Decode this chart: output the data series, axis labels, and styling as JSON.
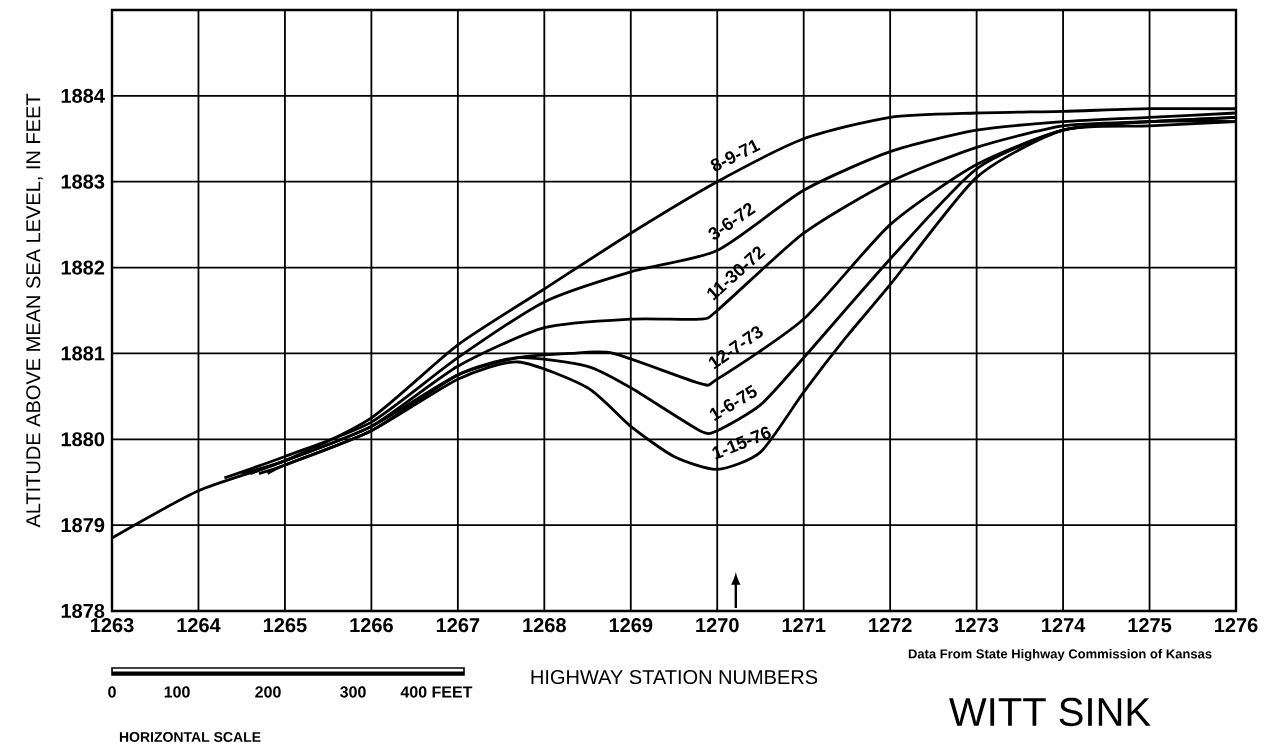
{
  "chart_data": {
    "type": "line",
    "title": "WITT SINK",
    "xlabel": "HIGHWAY STATION NUMBERS",
    "ylabel": "ALTITUDE ABOVE MEAN SEA LEVEL, IN FEET",
    "xlim": [
      1263,
      1276
    ],
    "xticks": [
      1263,
      1264,
      1265,
      1266,
      1267,
      1268,
      1269,
      1270,
      1271,
      1272,
      1273,
      1274,
      1275,
      1276
    ],
    "ylim": [
      1878,
      1885
    ],
    "yticks": [
      1878,
      1879,
      1880,
      1881,
      1882,
      1883,
      1884,
      {
        "value": 1885,
        "label": null
      }
    ],
    "grid": true,
    "legend": false,
    "marker": "none",
    "line_style": "solid",
    "annotations": [
      "Data From State Highway Commission of Kansas",
      "0",
      "100",
      "200",
      "300",
      "400 FEET",
      "HORIZONTAL SCALE"
    ],
    "series": [
      {
        "name": "8-9-71",
        "color": "#000000",
        "x": [
          1263,
          1264,
          1265,
          1266,
          1267,
          1268,
          1269,
          1270,
          1271,
          1272,
          1273,
          1274,
          1275,
          1276
        ],
        "values": [
          1878.85,
          1879.4,
          1879.75,
          1880.25,
          1881.1,
          1881.75,
          1882.4,
          1883.0,
          1883.5,
          1883.75,
          1883.8,
          1883.82,
          1883.85,
          1883.85
        ]
      },
      {
        "name": "3-6-72",
        "color": "#000000",
        "x": [
          1264.3,
          1265,
          1266,
          1267,
          1268,
          1269,
          1270,
          1271,
          1272,
          1273,
          1274,
          1275,
          1276
        ],
        "values": [
          1879.55,
          1879.8,
          1880.2,
          1880.95,
          1881.6,
          1881.95,
          1882.2,
          1882.9,
          1883.35,
          1883.6,
          1883.7,
          1883.75,
          1883.8
        ]
      },
      {
        "name": "11-30-72",
        "color": "#000000",
        "x": [
          1264.5,
          1265,
          1266,
          1267,
          1268,
          1269,
          1269.8,
          1270,
          1271,
          1272,
          1273,
          1274,
          1275,
          1276
        ],
        "values": [
          1879.6,
          1879.75,
          1880.15,
          1880.85,
          1881.3,
          1881.4,
          1881.4,
          1881.5,
          1882.4,
          1883.0,
          1883.4,
          1883.65,
          1883.7,
          1883.75
        ]
      },
      {
        "name": "12-7-73",
        "color": "#000000",
        "x": [
          1264.6,
          1265,
          1266,
          1267,
          1267.7,
          1268.3,
          1268.8,
          1269.8,
          1270,
          1271,
          1272,
          1273,
          1274,
          1275,
          1276
        ],
        "values": [
          1879.6,
          1879.75,
          1880.15,
          1880.75,
          1880.95,
          1881.0,
          1881.0,
          1880.65,
          1880.7,
          1881.4,
          1882.5,
          1883.2,
          1883.6,
          1883.7,
          1883.75
        ]
      },
      {
        "name": "1-6-75",
        "color": "#000000",
        "x": [
          1264.7,
          1265,
          1266,
          1267,
          1267.7,
          1268.5,
          1269,
          1269.8,
          1270,
          1270.5,
          1271,
          1272,
          1273,
          1274,
          1275,
          1276
        ],
        "values": [
          1879.6,
          1879.7,
          1880.1,
          1880.75,
          1880.95,
          1880.85,
          1880.6,
          1880.1,
          1880.1,
          1880.4,
          1880.95,
          1882.1,
          1883.15,
          1883.6,
          1883.7,
          1883.7
        ]
      },
      {
        "name": "1-15-76",
        "color": "#000000",
        "x": [
          1264.8,
          1265,
          1266,
          1267,
          1267.7,
          1268.5,
          1269,
          1269.5,
          1270,
          1270.5,
          1271,
          1271.5,
          1272,
          1273,
          1274,
          1275,
          1276
        ],
        "values": [
          1879.6,
          1879.7,
          1880.1,
          1880.7,
          1880.9,
          1880.6,
          1880.15,
          1879.8,
          1879.65,
          1879.85,
          1880.55,
          1881.2,
          1881.8,
          1883.05,
          1883.6,
          1883.65,
          1883.7
        ]
      }
    ]
  }
}
